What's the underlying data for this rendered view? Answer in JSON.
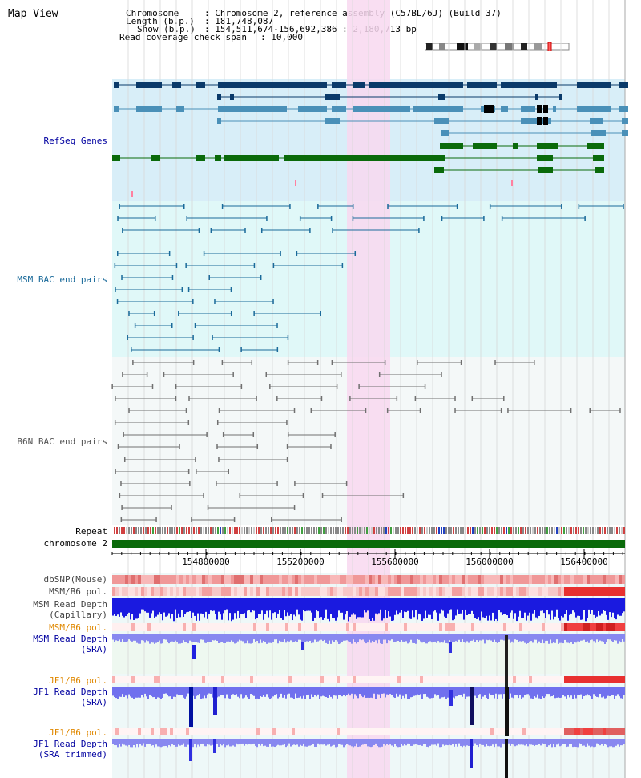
{
  "page": {
    "title": "Map View"
  },
  "header": {
    "chromosome_label": "Chromosome",
    "chromosome_value": ": Chromosome 2, reference assembly (C57BL/6J) (Build 37)",
    "length_label": "Length (b.p.)",
    "length_value": ": 181,748,087",
    "show_label": "Show (b.p.)",
    "show_value": ": 154,511,674-156,692,386 : 2,180,713 bp",
    "coverage_label": "Read coverage check span",
    "coverage_value": ": 10,000"
  },
  "tracks": {
    "refseq": "RefSeq Genes",
    "msm_bac": "MSM BAC end pairs",
    "b6n_bac": "B6N BAC end pairs",
    "repeat": "Repeat",
    "chromosome": "chromosome 2",
    "dbsnp": "dbSNP(Mouse)",
    "msm_b6_pol_1": "MSM/B6 pol.",
    "msm_depth_cap_1": "MSM Read Depth",
    "msm_depth_cap_2": "(Capillary)",
    "msm_b6_pol_2": "MSM/B6 pol.",
    "msm_depth_sra_1": "MSM Read Depth",
    "msm_depth_sra_2": "(SRA)",
    "jf1_b6_pol_1": "JF1/B6 pol.",
    "jf1_depth_sra_1": "JF1 Read Depth",
    "jf1_depth_sra_2": "(SRA)",
    "jf1_b6_pol_2": "JF1/B6 pol.",
    "jf1_depth_trim_1": "JF1 Read Depth",
    "jf1_depth_trim_2": "(SRA trimmed)"
  },
  "ruler": {
    "ticks": [
      "154800000",
      "155200000",
      "155600000",
      "156000000",
      "156400000"
    ]
  },
  "colors": {
    "refseq_bg": "#d8eef8",
    "bac_bg": "#e0f8f8",
    "highlight": "#f8d8f0",
    "gene_dark": "#0a3a6a",
    "gene_mid": "#4a90b8",
    "gene_green": "#0a6a0a",
    "bac_msm": "#1a6a9a",
    "bac_b6n": "#707070",
    "depth_blue": "#1010e0",
    "label_blue": "#0000a0",
    "label_orange": "#e08800"
  }
}
